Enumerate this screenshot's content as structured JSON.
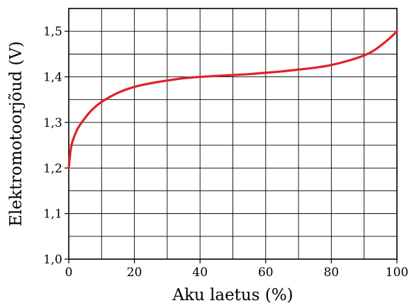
{
  "chart_data": {
    "type": "line",
    "title": "",
    "xlabel": "Aku laetus (%)",
    "ylabel": "Elektromotoorjõud (V)",
    "xlim": [
      0,
      100
    ],
    "ylim": [
      1.0,
      1.55
    ],
    "xticks": [
      0,
      20,
      40,
      60,
      80,
      100
    ],
    "xtick_labels": [
      "0",
      "20",
      "40",
      "60",
      "80",
      "100"
    ],
    "yticks": [
      1.0,
      1.1,
      1.2,
      1.3,
      1.4,
      1.5
    ],
    "ytick_labels": [
      "1,0",
      "1,1",
      "1,2",
      "1,3",
      "1,4",
      "1,5"
    ],
    "grid": true,
    "grid_x_step": 10,
    "grid_y_step": 0.05,
    "line_color": "#e0202a",
    "series": [
      {
        "x": [
          0,
          0.5,
          1,
          2,
          3,
          5,
          7,
          10,
          15,
          20,
          25,
          30,
          35,
          40,
          45,
          50,
          55,
          60,
          65,
          70,
          75,
          80,
          85,
          90,
          93,
          96,
          98,
          100
        ],
        "y": [
          1.2,
          1.235,
          1.255,
          1.275,
          1.29,
          1.31,
          1.327,
          1.345,
          1.365,
          1.378,
          1.386,
          1.392,
          1.397,
          1.4,
          1.402,
          1.404,
          1.406,
          1.409,
          1.412,
          1.416,
          1.42,
          1.426,
          1.435,
          1.447,
          1.458,
          1.474,
          1.486,
          1.5
        ]
      }
    ]
  }
}
